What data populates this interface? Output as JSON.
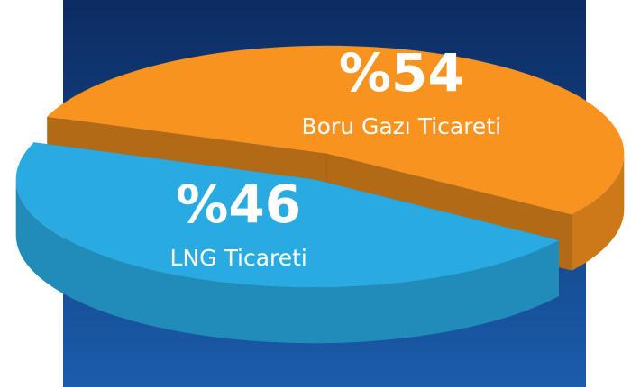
{
  "chart_data": {
    "type": "pie3d",
    "categories": [
      "Boru Gazı Ticareti",
      "LNG Ticareti"
    ],
    "values": [
      54,
      46
    ],
    "value_labels": [
      "%54",
      "%46"
    ],
    "colors": [
      "#f7931e",
      "#29abe2"
    ]
  }
}
